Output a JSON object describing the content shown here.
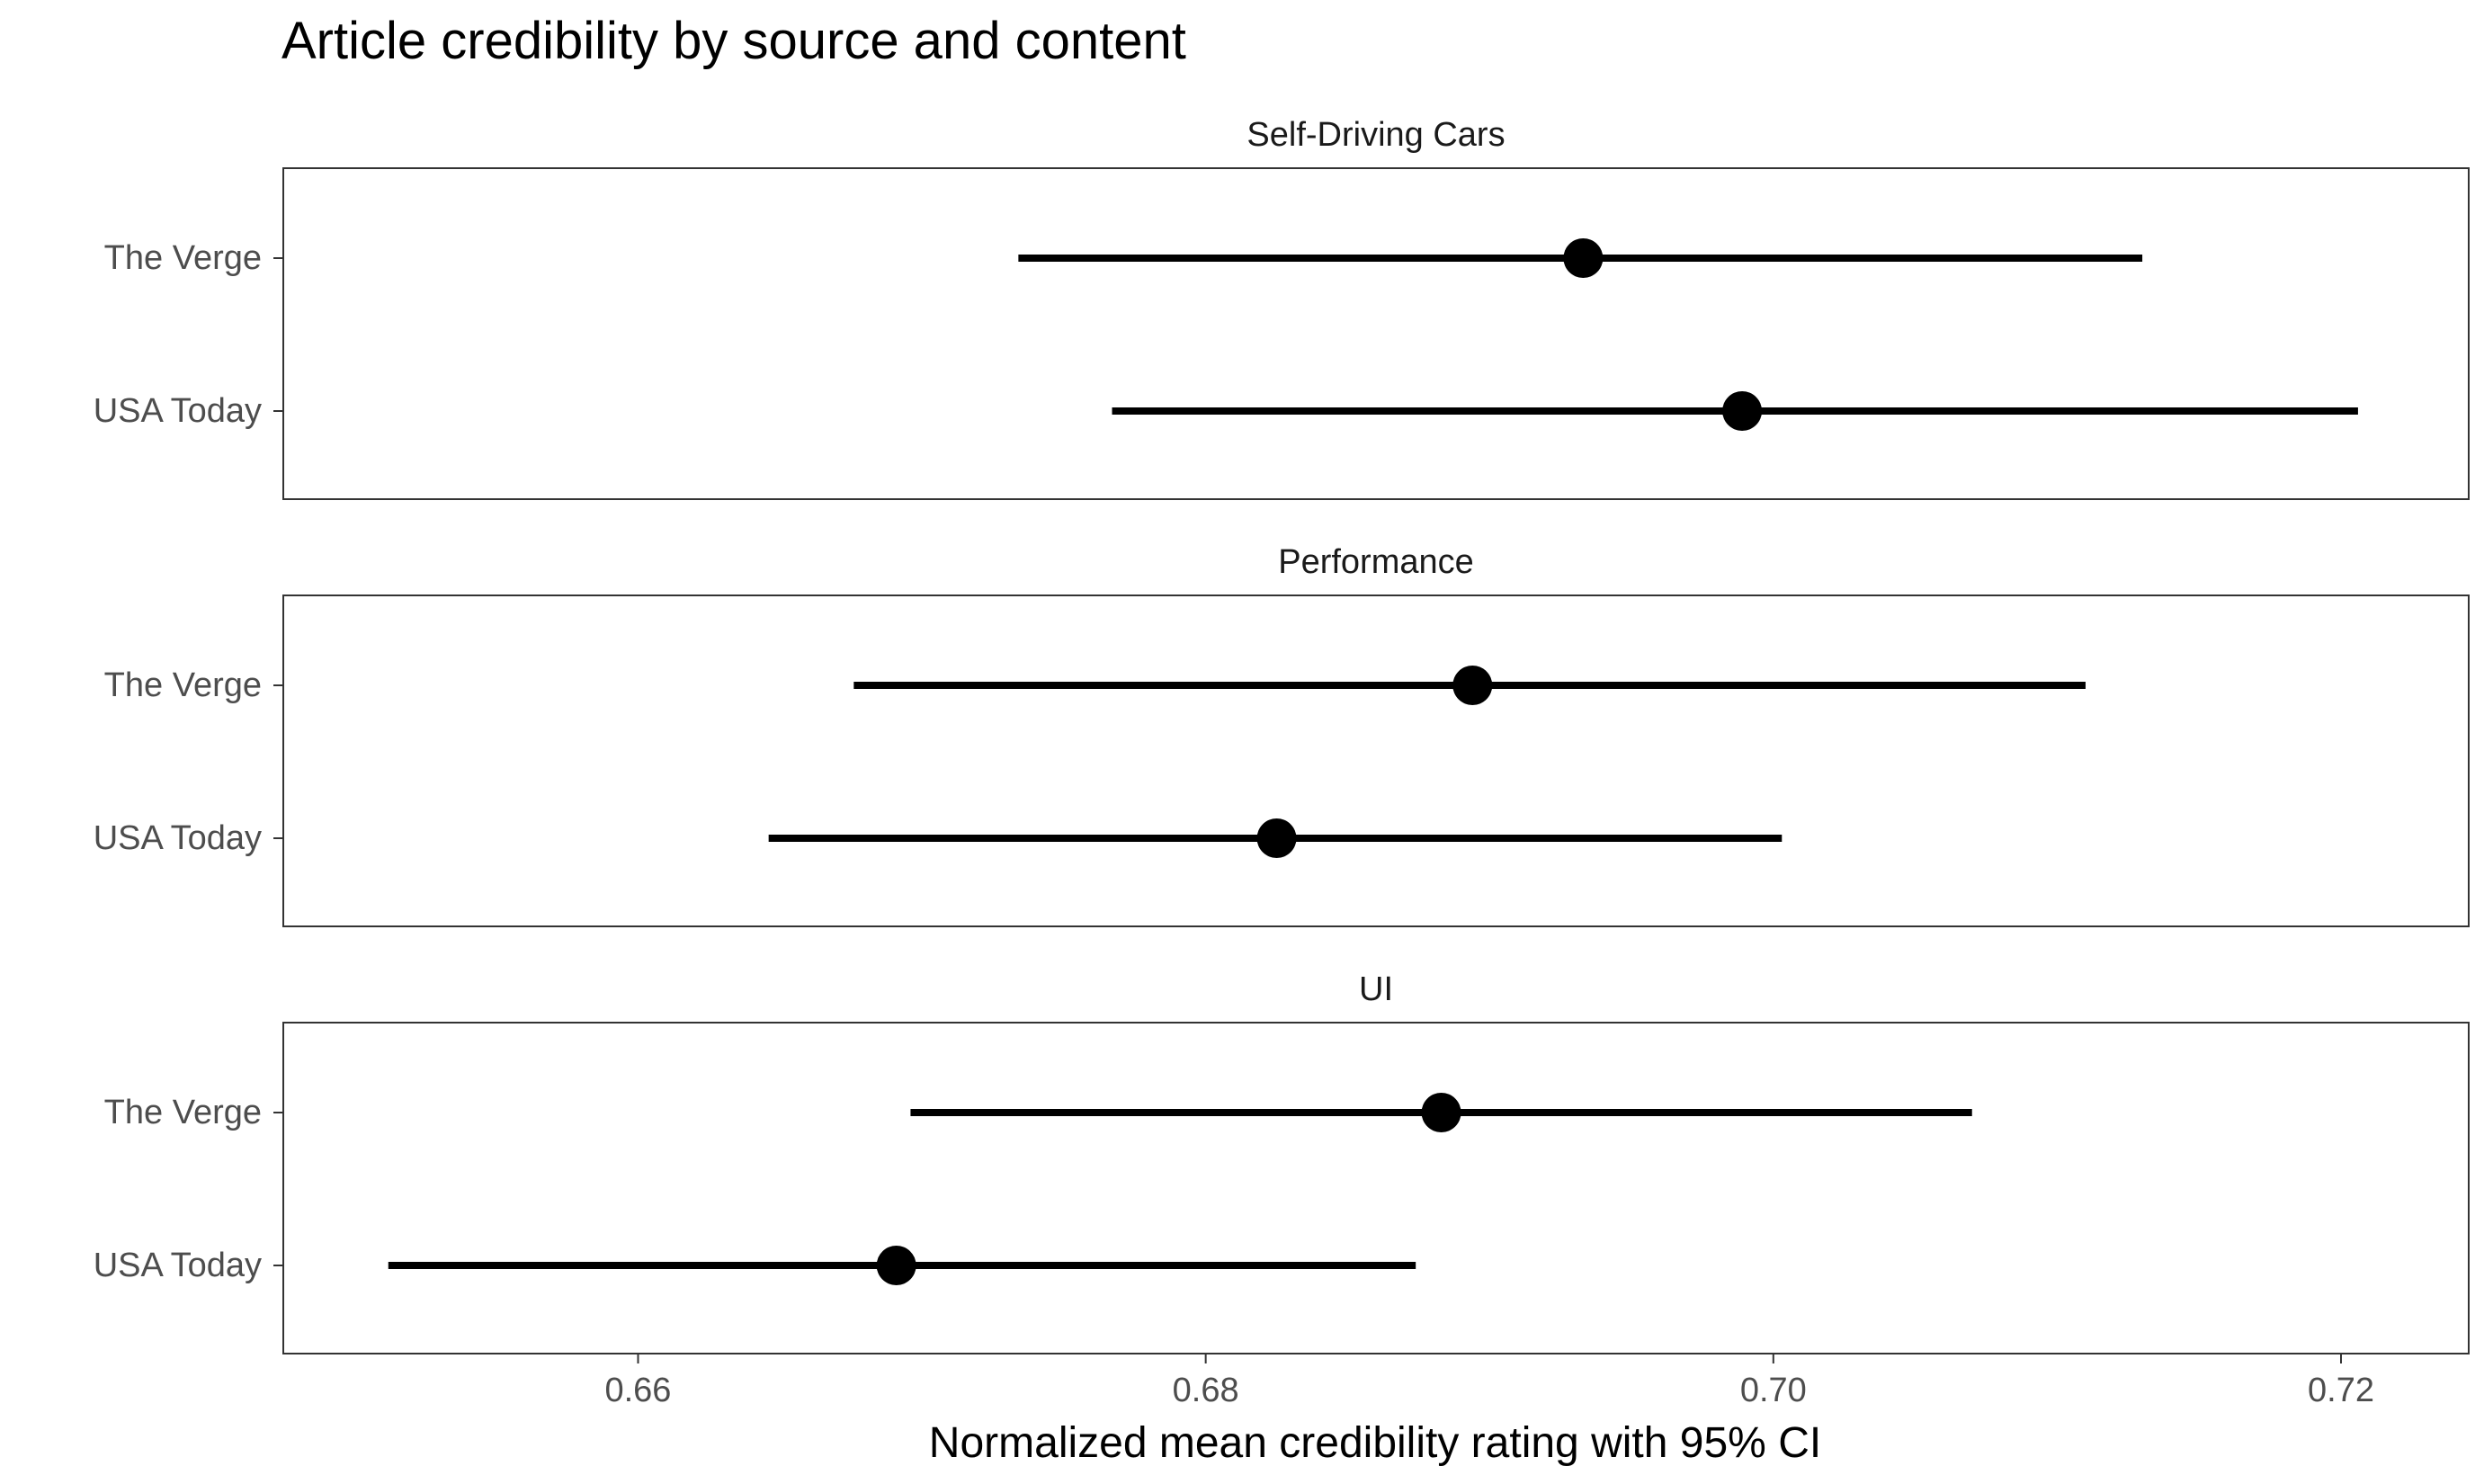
{
  "chart_data": {
    "type": "scatter",
    "title": "Article credibility by source and content",
    "xlabel": "Normalized mean credibility rating with 95% CI",
    "ylabel": "",
    "xlim": [
      0.6475,
      0.7245
    ],
    "x_ticks": [
      0.66,
      0.68,
      0.7,
      0.72
    ],
    "x_tick_labels": [
      "0.66",
      "0.68",
      "0.70",
      "0.72"
    ],
    "grid": false,
    "legend": "none",
    "colors": {
      "point": "#000000",
      "panel_border": "#333333",
      "text": "#4d4d4d"
    },
    "panels": [
      {
        "label": "Self-Driving Cars",
        "rows": [
          {
            "source": "The Verge",
            "mean": 0.6933,
            "lower": 0.6734,
            "upper": 0.713
          },
          {
            "source": "USA Today",
            "mean": 0.6989,
            "lower": 0.6767,
            "upper": 0.7206
          }
        ]
      },
      {
        "label": "Performance",
        "rows": [
          {
            "source": "The Verge",
            "mean": 0.6894,
            "lower": 0.6676,
            "upper": 0.711
          },
          {
            "source": "USA Today",
            "mean": 0.6825,
            "lower": 0.6646,
            "upper": 0.7003
          }
        ]
      },
      {
        "label": "UI",
        "rows": [
          {
            "source": "The Verge",
            "mean": 0.6883,
            "lower": 0.6696,
            "upper": 0.707
          },
          {
            "source": "USA Today",
            "mean": 0.6691,
            "lower": 0.6512,
            "upper": 0.6874
          }
        ]
      }
    ]
  }
}
